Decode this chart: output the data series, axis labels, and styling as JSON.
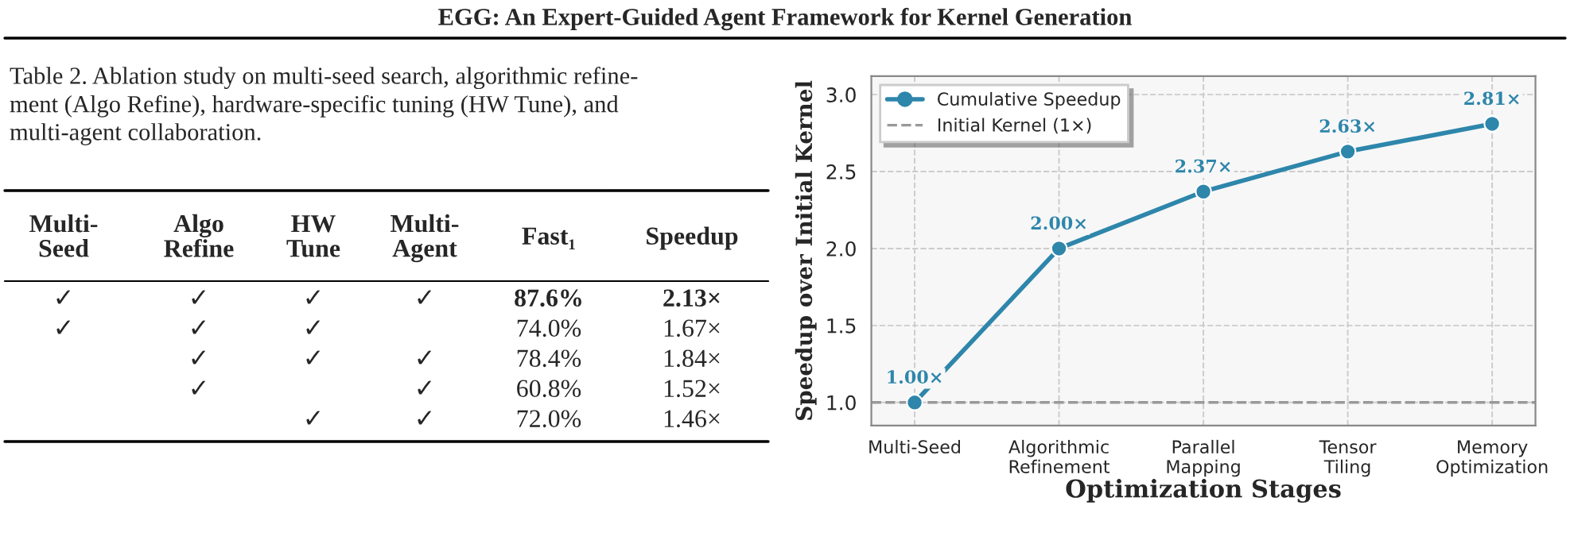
{
  "chart_data": [
    {
      "type": "other",
      "title": "EGG: An Expert-Guided Agent Framework for Kernel Generation",
      "subtitle": "Table 2. Ablation study on multi-seed search, algorithmic refine-\nment (Algo Refine), hardware-specific tuning (HW Tune), and\nmulti-agent collaboration.",
      "categories": [
        "Multi-\nSeed",
        "Algo\nRefine",
        "HW\nTune",
        "Multi-\nAgent",
        "Fast₁",
        "Speedup"
      ],
      "annotations": [
        "✓",
        "✓",
        "✓",
        "✓",
        "87.6%",
        "2.13×",
        "✓",
        "✓",
        "✓",
        null,
        "74.0%",
        "1.67×",
        null,
        "✓",
        "✓",
        "✓",
        "78.4%",
        "1.84×",
        null,
        "✓",
        null,
        "✓",
        "60.8%",
        "1.52×",
        null,
        null,
        "✓",
        "✓",
        "72.0%",
        "1.46×"
      ]
    },
    {
      "type": "line",
      "xlabel": "Optimization Stages",
      "ylabel": "Speedup over Initial Kernel",
      "categories": [
        "Multi-Seed",
        "Algorithmic\nRefinement",
        "Parallel\nMapping",
        "Tensor\nTiling",
        "Memory\nOptimization"
      ],
      "series": [
        {
          "name": "Cumulative Speedup",
          "color": "#2e86ab",
          "values": [
            1.0,
            2.0,
            2.37,
            2.63,
            2.81
          ],
          "value_labels": [
            "1.00×",
            "2.00×",
            "2.37×",
            "2.63×",
            "2.81×"
          ]
        }
      ],
      "ylim": [
        0.85,
        3.12
      ],
      "yticks": [
        {
          "value": 1,
          "label": "1.0"
        },
        1.5,
        {
          "value": 2,
          "label": "2.0"
        },
        2.5,
        {
          "value": 3,
          "label": "3.0"
        }
      ],
      "ref_lines": [
        {
          "axis": "y",
          "value": 1.0,
          "label": "Initial Kernel (1×)",
          "color": "#999999",
          "line_style": "dashed"
        }
      ],
      "grid": true,
      "legend": "top left",
      "marker": "circle",
      "line_style": "solid"
    }
  ]
}
